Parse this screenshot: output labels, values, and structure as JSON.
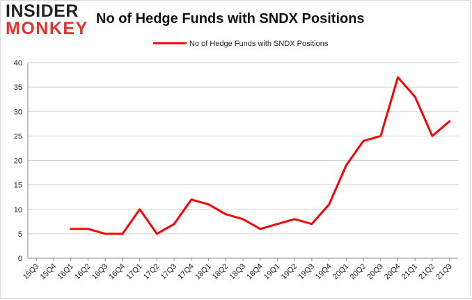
{
  "logo": {
    "line1": "INSIDER",
    "line2": "MONKEY"
  },
  "chart_data": {
    "type": "line",
    "title": "No of Hedge Funds with SNDX Positions",
    "xlabel": "",
    "ylabel": "",
    "categories": [
      "15Q3",
      "15Q4",
      "16Q1",
      "16Q2",
      "16Q3",
      "16Q4",
      "17Q1",
      "17Q2",
      "17Q3",
      "17Q4",
      "18Q1",
      "18Q2",
      "18Q3",
      "18Q4",
      "19Q1",
      "19Q2",
      "19Q3",
      "19Q4",
      "20Q1",
      "20Q2",
      "20Q3",
      "20Q4",
      "21Q1",
      "21Q2",
      "21Q3"
    ],
    "series": [
      {
        "name": "No of Hedge Funds with SNDX Positions",
        "color": "#ff0000",
        "values": [
          null,
          null,
          6,
          6,
          5,
          5,
          10,
          5,
          7,
          12,
          11,
          9,
          8,
          6,
          7,
          8,
          7,
          11,
          19,
          24,
          25,
          37,
          33,
          25,
          28
        ]
      }
    ],
    "ylim": [
      0,
      40
    ],
    "yticks": [
      0,
      5,
      10,
      15,
      20,
      25,
      30,
      35,
      40
    ],
    "grid": true,
    "legend": "top-center"
  }
}
